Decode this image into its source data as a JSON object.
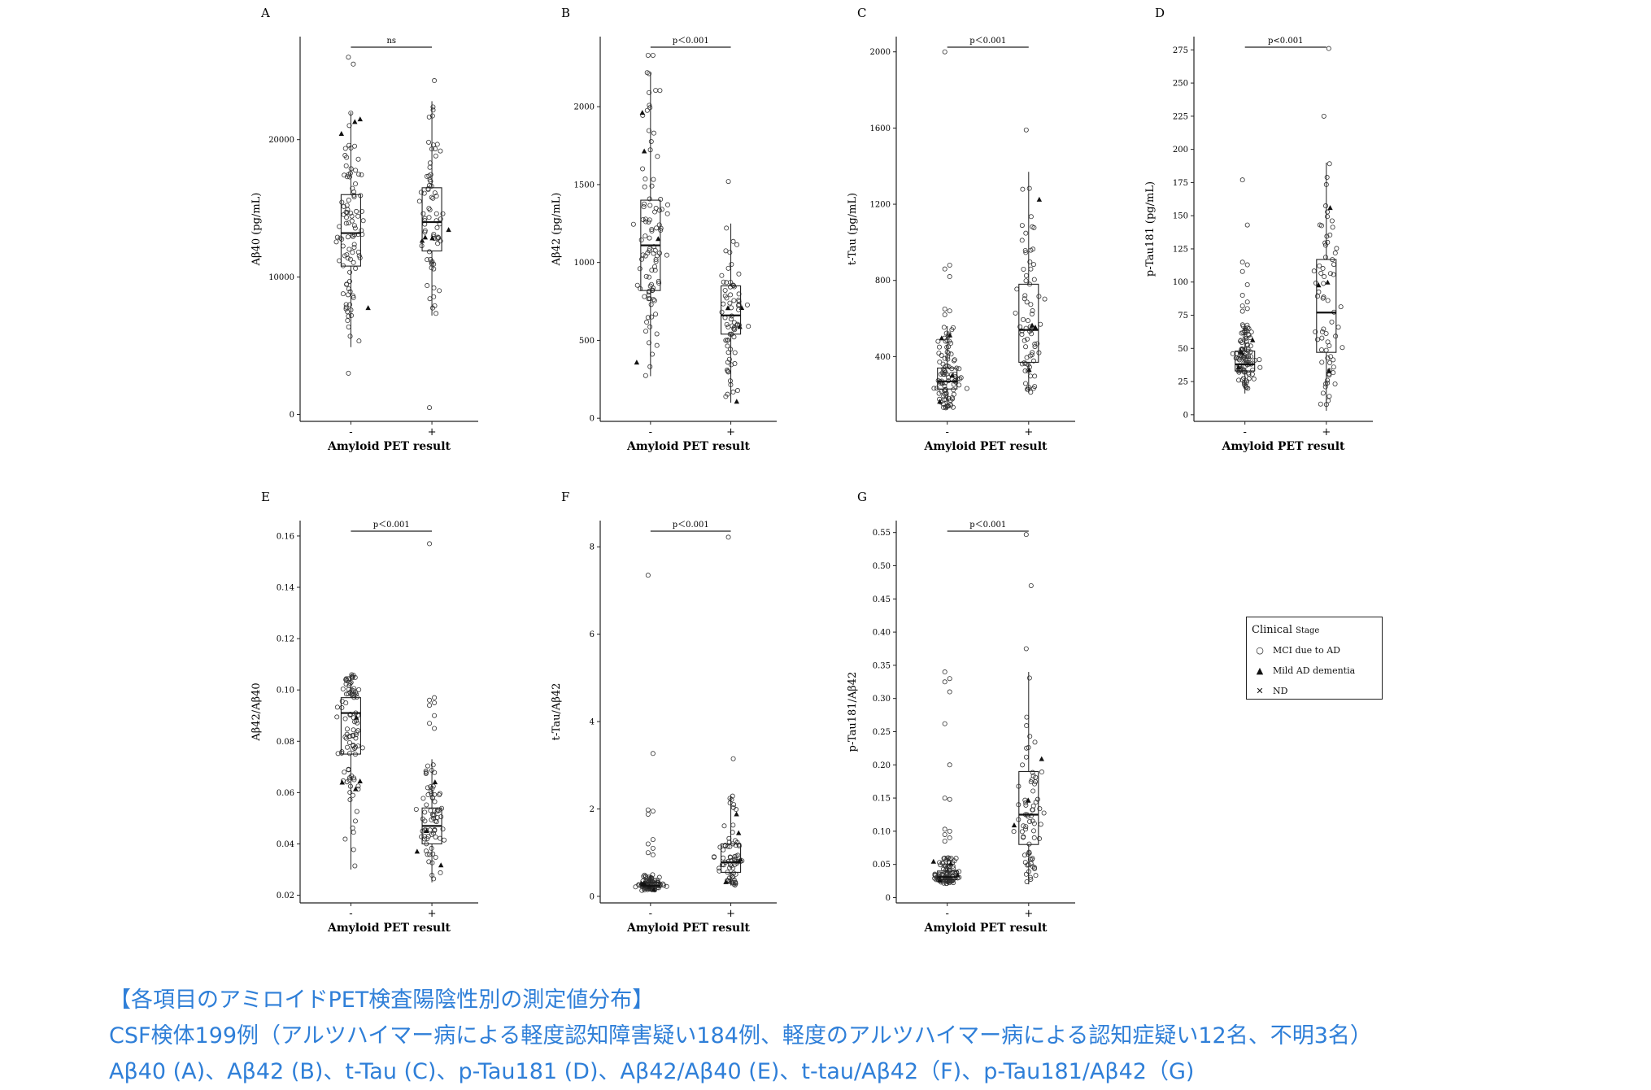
{
  "caption": {
    "line1": "【各項目のアミロイドPET検査陽陰性別の測定値分布】",
    "line2": "CSF検体199例（アルツハイマー病による軽度認知障害疑い184例、軽度のアルツハイマー病による認知症疑い12名、不明3名）",
    "line3": "Aβ40 (A)、Aβ42 (B)、t-Tau (C)、p-Tau181 (D)、Aβ42/Aβ40 (E)、t-tau/Aβ42（F)、p-Tau181/Aβ42（G)"
  },
  "legend": {
    "title": "Clinical",
    "title_small": "Stage",
    "items": [
      {
        "symbol": "circle",
        "label": "MCI due to AD"
      },
      {
        "symbol": "triangle",
        "label": "Mild AD dementia"
      },
      {
        "symbol": "cross",
        "label": "ND"
      }
    ]
  },
  "chart_data": [
    {
      "panel": "A",
      "type": "box-scatter",
      "ylabel": "Aβ40 (pg/mL)",
      "xlabel": "Amyloid PET result",
      "categories": [
        "-",
        "+"
      ],
      "ylim": [
        -500,
        27500
      ],
      "yticks": [
        0,
        10000,
        20000
      ],
      "significance": "ns",
      "box": [
        {
          "category": "-",
          "whisker_low": 4900,
          "q1": 10800,
          "median": 13200,
          "q3": 16000,
          "whisker_high": 22000
        },
        {
          "category": "+",
          "whisker_low": 7200,
          "q1": 11900,
          "median": 14000,
          "q3": 16500,
          "whisker_high": 22800
        }
      ],
      "outliers": [
        {
          "category": "-",
          "values": [
            26000,
            25500,
            3000
          ]
        },
        {
          "category": "+",
          "values": [
            500,
            24300
          ]
        }
      ]
    },
    {
      "panel": "B",
      "type": "box-scatter",
      "ylabel": "Aβ42 (pg/mL)",
      "xlabel": "Amyloid PET result",
      "categories": [
        "-",
        "+"
      ],
      "ylim": [
        -20,
        2450
      ],
      "yticks": [
        0,
        500,
        1000,
        1500,
        2000
      ],
      "significance": "p＜0.001",
      "box": [
        {
          "category": "-",
          "whisker_low": 270,
          "q1": 820,
          "median": 1110,
          "q3": 1400,
          "whisker_high": 2220
        },
        {
          "category": "+",
          "whisker_low": 100,
          "q1": 540,
          "median": 660,
          "q3": 850,
          "whisker_high": 1250
        }
      ],
      "outliers": [
        {
          "category": "-",
          "values": [
            2330,
            2330
          ]
        },
        {
          "category": "+",
          "values": [
            1520
          ]
        }
      ]
    },
    {
      "panel": "C",
      "type": "box-scatter",
      "ylabel": "t-Tau (pg/mL)",
      "xlabel": "Amyloid PET result",
      "categories": [
        "-",
        "+"
      ],
      "ylim": [
        60,
        2080
      ],
      "yticks": [
        400,
        800,
        1200,
        1600,
        2000
      ],
      "significance": "p＜0.001",
      "box": [
        {
          "category": "-",
          "whisker_low": 120,
          "q1": 230,
          "median": 270,
          "q3": 340,
          "whisker_high": 560
        },
        {
          "category": "+",
          "whisker_low": 210,
          "q1": 370,
          "median": 540,
          "q3": 780,
          "whisker_high": 1370
        }
      ],
      "outliers": [
        {
          "category": "-",
          "values": [
            2000,
            880,
            860,
            820,
            650,
            640,
            620
          ]
        },
        {
          "category": "+",
          "values": [
            1590
          ]
        }
      ]
    },
    {
      "panel": "D",
      "type": "box-scatter",
      "ylabel": "p-Tau181 (pg/mL)",
      "xlabel": "Amyloid PET result",
      "categories": [
        "-",
        "+"
      ],
      "ylim": [
        -5,
        285
      ],
      "yticks": [
        0,
        25,
        50,
        75,
        100,
        125,
        150,
        175,
        200,
        225,
        250,
        275
      ],
      "significance": "p<0.001",
      "box": [
        {
          "category": "-",
          "whisker_low": 16,
          "q1": 33,
          "median": 38,
          "q3": 48,
          "whisker_high": 68
        },
        {
          "category": "+",
          "whisker_low": 3,
          "q1": 47,
          "median": 77,
          "q3": 117,
          "whisker_high": 190
        }
      ],
      "outliers": [
        {
          "category": "-",
          "values": [
            177,
            143,
            115,
            113,
            108,
            98,
            90,
            85,
            82,
            80,
            78
          ]
        },
        {
          "category": "+",
          "values": [
            225,
            276
          ]
        }
      ]
    },
    {
      "panel": "E",
      "type": "box-scatter",
      "ylabel": "Aβ42/Aβ40",
      "xlabel": "Amyloid PET result",
      "categories": [
        "-",
        "+"
      ],
      "ylim": [
        0.017,
        0.166
      ],
      "yticks": [
        0.02,
        0.04,
        0.06,
        0.08,
        0.1,
        0.12,
        0.14,
        0.16
      ],
      "significance": "p＜0.001",
      "box": [
        {
          "category": "-",
          "whisker_low": 0.03,
          "q1": 0.075,
          "median": 0.091,
          "q3": 0.097,
          "whisker_high": 0.106
        },
        {
          "category": "+",
          "whisker_low": 0.025,
          "q1": 0.04,
          "median": 0.047,
          "q3": 0.054,
          "whisker_high": 0.073
        }
      ],
      "outliers": [
        {
          "category": "+",
          "values": [
            0.157,
            0.097,
            0.096,
            0.095,
            0.094,
            0.09,
            0.087,
            0.085
          ]
        }
      ]
    },
    {
      "panel": "F",
      "type": "box-scatter",
      "ylabel": "t-Tau/Aβ42",
      "xlabel": "Amyloid PET result",
      "categories": [
        "-",
        "+"
      ],
      "ylim": [
        -0.15,
        8.6
      ],
      "yticks": [
        0,
        2,
        4,
        6,
        8
      ],
      "significance": "p＜0.001",
      "box": [
        {
          "category": "-",
          "whisker_low": 0.13,
          "q1": 0.2,
          "median": 0.24,
          "q3": 0.32,
          "whisker_high": 0.5
        },
        {
          "category": "+",
          "whisker_low": 0.25,
          "q1": 0.55,
          "median": 0.78,
          "q3": 1.2,
          "whisker_high": 2.3
        }
      ],
      "outliers": [
        {
          "category": "-",
          "values": [
            7.35,
            3.27,
            1.98,
            1.95,
            1.88,
            1.3,
            1.2,
            1.1,
            1.0,
            0.95
          ]
        },
        {
          "category": "+",
          "values": [
            8.22,
            3.15
          ]
        }
      ]
    },
    {
      "panel": "G",
      "type": "box-scatter",
      "ylabel": "p-Tau181/Aβ42",
      "xlabel": "Amyloid PET result",
      "categories": [
        "-",
        "+"
      ],
      "ylim": [
        -0.008,
        0.568
      ],
      "yticks": [
        0,
        0.05,
        0.1,
        0.15,
        0.2,
        0.25,
        0.3,
        0.35,
        0.4,
        0.45,
        0.5,
        0.55
      ],
      "significance": "p＜0.001",
      "box": [
        {
          "category": "-",
          "whisker_low": 0.02,
          "q1": 0.027,
          "median": 0.031,
          "q3": 0.04,
          "whisker_high": 0.06
        },
        {
          "category": "+",
          "whisker_low": 0.02,
          "q1": 0.08,
          "median": 0.125,
          "q3": 0.19,
          "whisker_high": 0.34
        }
      ],
      "outliers": [
        {
          "category": "-",
          "values": [
            0.34,
            0.33,
            0.325,
            0.31,
            0.262,
            0.2,
            0.15,
            0.148,
            0.103,
            0.1,
            0.095,
            0.09,
            0.085
          ]
        },
        {
          "category": "+",
          "values": [
            0.547,
            0.47,
            0.375
          ]
        }
      ]
    }
  ]
}
